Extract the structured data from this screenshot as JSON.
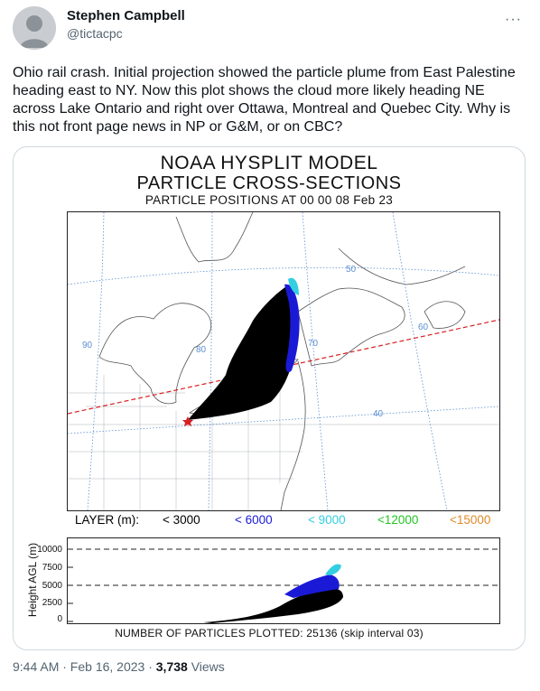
{
  "author": {
    "display_name": "Stephen Campbell",
    "handle": "@tictacpc"
  },
  "more_icon": "more-horizontal-icon",
  "tweet_text": "Ohio rail crash. Initial projection showed the particle plume from East Palestine heading east to NY. Now this plot shows the cloud more likely heading NE across Lake Ontario and right over Ottawa, Montreal and Quebec City. Why is this not front page news in NP or G&M, or on CBC?",
  "figure": {
    "title_line1": "NOAA HYSPLIT MODEL",
    "title_line2": "PARTICLE CROSS-SECTIONS",
    "title_line3": "PARTICLE POSITIONS AT 00 00  08 Feb 23",
    "map_labels": {
      "lat50": "50",
      "lat40": "40",
      "lon90": "90",
      "lon80": "80",
      "lon70": "70",
      "lon60": "60"
    },
    "legend": {
      "label": "LAYER (m):",
      "l1": "< 3000",
      "l2": "< 6000",
      "l3": "< 9000",
      "l4": "<12000",
      "l5": "<15000"
    },
    "legend_colors": {
      "l1": "#000000",
      "l2": "#1a1ad6",
      "l3": "#33cfe0",
      "l4": "#22c422",
      "l5": "#e08a2a"
    },
    "cross_section": {
      "ylabel": "Height AGL (m)",
      "ticks": [
        "10000",
        "7500",
        "5000",
        "2500",
        "0"
      ]
    },
    "particles_line": "NUMBER OF PARTICLES PLOTTED:  25136  (skip interval     03)"
  },
  "meta": {
    "time_date": "9:44 AM · Feb 16, 2023 · ",
    "views_count": "3,738",
    "views_label": " Views"
  }
}
